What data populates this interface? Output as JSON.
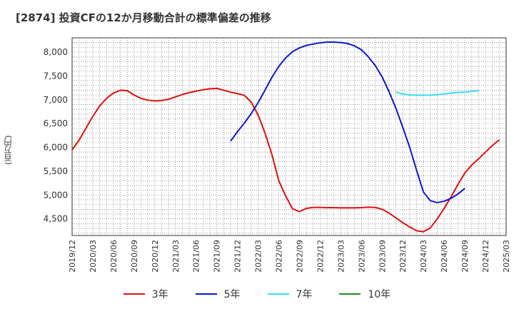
{
  "chart_data": {
    "type": "line",
    "title": "[2874]  投資CFの12か月移動合計の標準偏差の推移",
    "ylabel": "(百万円)",
    "xlabel": "",
    "x_ticks": [
      "2019/12",
      "2020/03",
      "2020/06",
      "2020/09",
      "2020/12",
      "2021/03",
      "2021/06",
      "2021/09",
      "2021/12",
      "2022/03",
      "2022/06",
      "2022/09",
      "2022/12",
      "2023/03",
      "2023/06",
      "2023/09",
      "2023/12",
      "2024/03",
      "2024/06",
      "2024/09",
      "2024/12",
      "2025/03"
    ],
    "y_ticks": [
      4500,
      5000,
      5500,
      6000,
      6500,
      7000,
      7500,
      8000
    ],
    "y_tick_labels": [
      "4,500",
      "5,000",
      "5,500",
      "6,000",
      "6,500",
      "7,000",
      "7,500",
      "8,000"
    ],
    "ylim": [
      4150,
      8300
    ],
    "grid": true,
    "legend_position": "bottom",
    "series": [
      {
        "name": "3年",
        "color": "#dd1111",
        "start": "2019/12",
        "values": [
          5950,
          6150,
          6400,
          6650,
          6870,
          7030,
          7140,
          7200,
          7190,
          7100,
          7030,
          6990,
          6975,
          6985,
          7010,
          7060,
          7110,
          7150,
          7180,
          7210,
          7230,
          7240,
          7200,
          7160,
          7130,
          7090,
          6950,
          6680,
          6300,
          5850,
          5300,
          4980,
          4710,
          4650,
          4720,
          4740,
          4740,
          4735,
          4735,
          4730,
          4730,
          4730,
          4735,
          4745,
          4740,
          4700,
          4620,
          4520,
          4420,
          4330,
          4250,
          4230,
          4310,
          4500,
          4720,
          4960,
          5220,
          5460,
          5630,
          5760,
          5900,
          6040,
          6160
        ]
      },
      {
        "name": "5年",
        "color": "#0a1ac8",
        "start": "2021/11",
        "values": [
          6130,
          6330,
          6510,
          6710,
          6940,
          7200,
          7470,
          7700,
          7880,
          8010,
          8090,
          8140,
          8170,
          8195,
          8210,
          8210,
          8200,
          8180,
          8130,
          8050,
          7900,
          7720,
          7480,
          7170,
          6820,
          6420,
          6000,
          5520,
          5060,
          4880,
          4840,
          4870,
          4930,
          5020,
          5140
        ]
      },
      {
        "name": "7年",
        "color": "#33e0f0",
        "start": "2023/11",
        "values": [
          7160,
          7120,
          7100,
          7095,
          7095,
          7095,
          7105,
          7120,
          7140,
          7155,
          7160,
          7175,
          7195
        ]
      },
      {
        "name": "10年",
        "color": "#228b22",
        "start": "",
        "values": []
      }
    ]
  }
}
